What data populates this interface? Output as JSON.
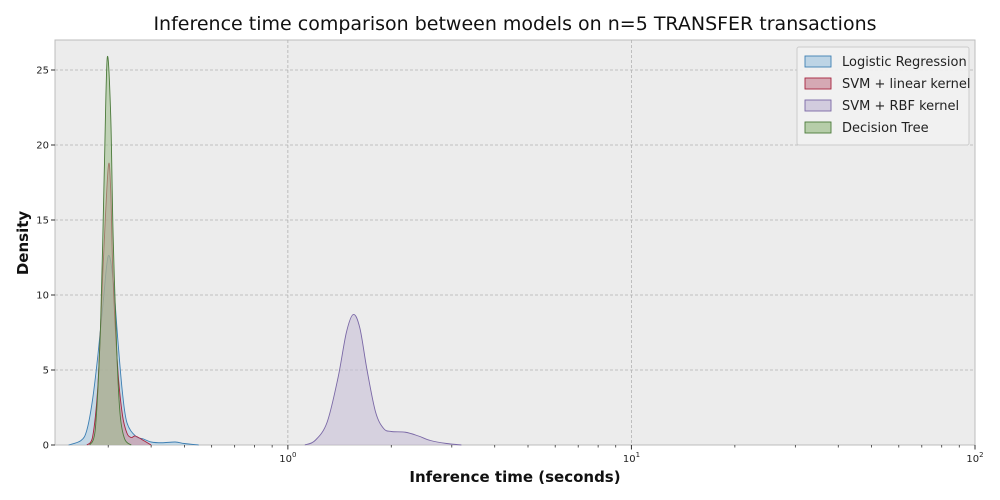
{
  "chart_data": {
    "type": "area",
    "title": "Inference time comparison between models on n=5 TRANSFER transactions",
    "xlabel": "Inference time (seconds)",
    "ylabel": "Density",
    "xscale": "log",
    "xlim": [
      0.21,
      100
    ],
    "ylim": [
      0,
      27
    ],
    "xticks": [
      {
        "value": 1,
        "base": "10",
        "exp": "0"
      },
      {
        "value": 10,
        "base": "10",
        "exp": "1"
      },
      {
        "value": 100,
        "base": "10",
        "exp": "2"
      }
    ],
    "yticks": [
      0,
      5,
      10,
      15,
      20,
      25
    ],
    "grid": true,
    "legend_position": "top-right",
    "series": [
      {
        "name": "Logistic Regression",
        "fill": "#a6c8e0",
        "stroke": "#3d7fb3",
        "points": [
          [
            0.23,
            0
          ],
          [
            0.25,
            0.3
          ],
          [
            0.26,
            1
          ],
          [
            0.27,
            3
          ],
          [
            0.28,
            6
          ],
          [
            0.29,
            9.5
          ],
          [
            0.3,
            12.6
          ],
          [
            0.31,
            11
          ],
          [
            0.32,
            7
          ],
          [
            0.33,
            3.5
          ],
          [
            0.34,
            1.5
          ],
          [
            0.36,
            0.6
          ],
          [
            0.38,
            0.4
          ],
          [
            0.4,
            0.2
          ],
          [
            0.43,
            0.15
          ],
          [
            0.47,
            0.2
          ],
          [
            0.5,
            0.1
          ],
          [
            0.55,
            0
          ]
        ]
      },
      {
        "name": "SVM + linear kernel",
        "fill": "#c98a9a",
        "stroke": "#a8243f",
        "points": [
          [
            0.26,
            0
          ],
          [
            0.27,
            0.5
          ],
          [
            0.28,
            4
          ],
          [
            0.29,
            12
          ],
          [
            0.3,
            18.5
          ],
          [
            0.305,
            17
          ],
          [
            0.31,
            11
          ],
          [
            0.32,
            5
          ],
          [
            0.33,
            2
          ],
          [
            0.34,
            0.8
          ],
          [
            0.35,
            0.5
          ],
          [
            0.36,
            0.6
          ],
          [
            0.38,
            0.3
          ],
          [
            0.4,
            0
          ]
        ]
      },
      {
        "name": "SVM + RBF kernel",
        "fill": "#c4bcd6",
        "stroke": "#7a68a6",
        "points": [
          [
            1.12,
            0
          ],
          [
            1.2,
            0.3
          ],
          [
            1.3,
            1.5
          ],
          [
            1.4,
            4.5
          ],
          [
            1.48,
            7.5
          ],
          [
            1.55,
            8.7
          ],
          [
            1.62,
            7.8
          ],
          [
            1.7,
            5
          ],
          [
            1.8,
            2.2
          ],
          [
            1.9,
            1.1
          ],
          [
            2.0,
            0.9
          ],
          [
            2.2,
            0.85
          ],
          [
            2.4,
            0.6
          ],
          [
            2.6,
            0.3
          ],
          [
            2.9,
            0.1
          ],
          [
            3.2,
            0
          ]
        ]
      },
      {
        "name": "Decision Tree",
        "fill": "#9dbd8a",
        "stroke": "#4b7a3a",
        "points": [
          [
            0.265,
            0
          ],
          [
            0.275,
            1
          ],
          [
            0.285,
            8
          ],
          [
            0.292,
            18
          ],
          [
            0.298,
            25.8
          ],
          [
            0.305,
            22
          ],
          [
            0.31,
            14
          ],
          [
            0.318,
            6
          ],
          [
            0.325,
            2
          ],
          [
            0.335,
            0.4
          ],
          [
            0.35,
            0
          ]
        ]
      }
    ]
  }
}
